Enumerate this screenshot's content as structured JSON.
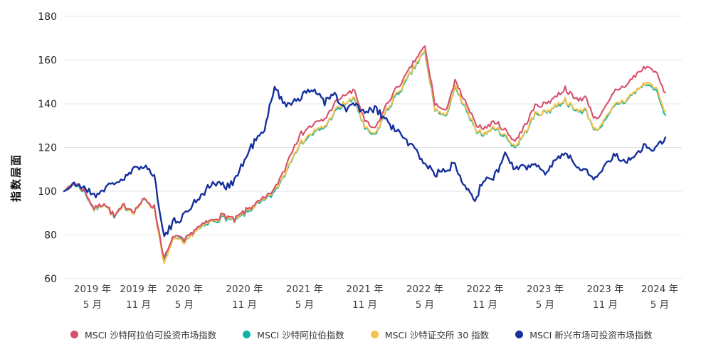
{
  "chart_data": {
    "type": "line",
    "title": "",
    "xlabel": "",
    "ylabel": "指数层面",
    "ylim": [
      60,
      180
    ],
    "y_ticks": [
      180,
      160,
      140,
      120,
      100,
      80,
      60
    ],
    "grid": "horizontal",
    "legend_position": "bottom",
    "x": [
      "2019-05",
      "2019-06",
      "2019-07",
      "2019-08",
      "2019-09",
      "2019-10",
      "2019-11",
      "2019-12",
      "2020-01",
      "2020-02",
      "2020-03",
      "2020-04",
      "2020-05",
      "2020-06",
      "2020-07",
      "2020-08",
      "2020-09",
      "2020-10",
      "2020-11",
      "2020-12",
      "2021-01",
      "2021-02",
      "2021-03",
      "2021-04",
      "2021-05",
      "2021-06",
      "2021-07",
      "2021-08",
      "2021-09",
      "2021-10",
      "2021-11",
      "2021-12",
      "2022-01",
      "2022-02",
      "2022-03",
      "2022-04",
      "2022-05",
      "2022-06",
      "2022-07",
      "2022-08",
      "2022-09",
      "2022-10",
      "2022-11",
      "2022-12",
      "2023-01",
      "2023-02",
      "2023-03",
      "2023-04",
      "2023-05",
      "2023-06",
      "2023-07",
      "2023-08",
      "2023-09",
      "2023-10",
      "2023-11",
      "2023-12",
      "2024-01",
      "2024-02",
      "2024-03",
      "2024-04",
      "2024-05"
    ],
    "x_tick_labels": [
      {
        "year": "2019 年",
        "month": "5 月"
      },
      {
        "year": "2019 年",
        "month": "11 月"
      },
      {
        "year": "2020 年",
        "month": "5 月"
      },
      {
        "year": "2020 年",
        "month": "11 月"
      },
      {
        "year": "2021 年",
        "month": "5 月"
      },
      {
        "year": "2021 年",
        "month": "11 月"
      },
      {
        "year": "2022 年",
        "month": "5 月"
      },
      {
        "year": "2022 年",
        "month": "11 月"
      },
      {
        "year": "2023 年",
        "month": "5 月"
      },
      {
        "year": "2023 年",
        "month": "11 月"
      },
      {
        "year": "2024 年",
        "month": "5 月"
      }
    ],
    "series": [
      {
        "name": "MSCI 沙特阿拉伯可投资市场指数",
        "color": "#d5506a",
        "values": [
          100,
          104,
          100.5,
          92,
          95,
          88.5,
          93.5,
          91,
          96.5,
          93,
          69,
          80,
          77,
          82.5,
          85,
          87.5,
          89,
          87,
          90.5,
          94,
          96.5,
          101,
          110,
          122,
          128,
          131,
          133,
          140,
          144,
          146,
          132,
          128,
          138,
          146,
          152,
          160,
          166,
          140,
          136,
          150,
          141,
          131,
          129,
          132,
          128,
          123,
          130,
          139,
          140,
          143,
          147,
          142,
          143,
          133,
          138,
          146,
          148,
          153,
          157,
          155,
          144
        ]
      },
      {
        "name": "MSCI 沙特阿拉伯指数",
        "color": "#11b3a5",
        "values": [
          100,
          103.5,
          100,
          91.5,
          94.5,
          88,
          93,
          90.5,
          96,
          92.5,
          68,
          79,
          76,
          81.5,
          84,
          86.5,
          88,
          86,
          89.5,
          93,
          95.5,
          99.5,
          107.5,
          118,
          123.5,
          127,
          129,
          136,
          140,
          142,
          128.5,
          125,
          135,
          143,
          149,
          157,
          163.5,
          137.5,
          133.5,
          147,
          138,
          128,
          126,
          129,
          125,
          120,
          126.5,
          135,
          136,
          138.5,
          141.5,
          136.5,
          137,
          127.5,
          132,
          139.5,
          141,
          145.5,
          149,
          147,
          134
        ]
      },
      {
        "name": "MSCI 沙特证交所 30 指数",
        "color": "#f5c34d",
        "values": [
          100,
          104,
          100.5,
          91.5,
          94.5,
          88,
          93,
          90.5,
          96,
          92.5,
          66.5,
          79,
          75.5,
          81.5,
          84.5,
          87,
          88.5,
          86.5,
          90,
          93.5,
          96,
          100,
          108,
          118.5,
          124,
          127.5,
          129.5,
          136.5,
          140.5,
          142.5,
          129,
          125.5,
          135.5,
          143.5,
          149.5,
          157.5,
          164,
          138,
          134,
          147.5,
          138.5,
          128.5,
          126.5,
          129.5,
          125.5,
          120.5,
          127,
          135.5,
          136.5,
          139,
          142,
          137,
          137.5,
          128,
          132.5,
          140,
          141.5,
          146,
          149.5,
          148,
          135.5
        ]
      },
      {
        "name": "MSCI 新兴市场可投资市场指数",
        "color": "#16309c",
        "values": [
          100,
          103,
          102,
          98,
          101,
          104,
          105.5,
          110,
          112,
          107,
          79,
          86,
          89,
          95,
          100,
          104,
          102,
          105,
          114,
          123,
          127,
          149,
          139,
          142,
          144,
          147,
          141,
          144,
          137,
          140,
          135,
          138,
          133,
          128,
          124,
          119,
          113,
          108,
          109,
          113,
          103,
          97,
          105,
          107,
          117,
          110,
          111,
          112,
          109,
          114,
          118,
          112,
          110,
          105.5,
          112,
          117,
          113,
          117,
          121,
          119,
          125
        ]
      }
    ]
  }
}
